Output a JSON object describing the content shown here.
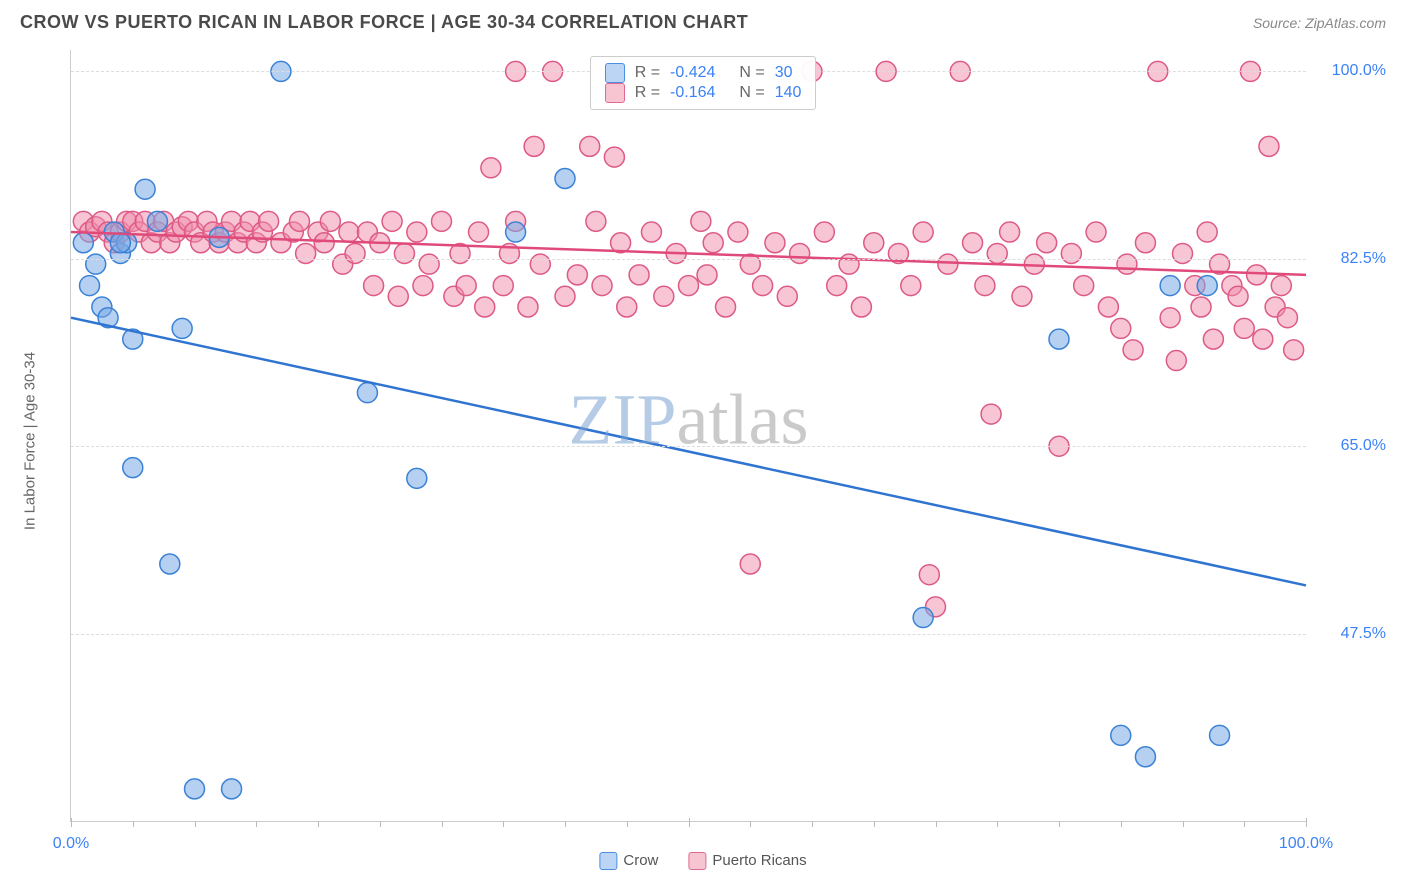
{
  "header": {
    "title": "CROW VS PUERTO RICAN IN LABOR FORCE | AGE 30-34 CORRELATION CHART",
    "source_prefix": "Source: ",
    "source": "ZipAtlas.com"
  },
  "ylabel": "In Labor Force | Age 30-34",
  "watermark": {
    "zip": "ZIP",
    "atlas": "atlas"
  },
  "chart": {
    "type": "scatter",
    "xlim": [
      0,
      100
    ],
    "ylim": [
      30,
      102
    ],
    "background": "#ffffff",
    "grid_color": "#dddddd",
    "yticks": [
      {
        "v": 47.5,
        "label": "47.5%"
      },
      {
        "v": 65.0,
        "label": "65.0%"
      },
      {
        "v": 82.5,
        "label": "82.5%"
      },
      {
        "v": 100.0,
        "label": "100.0%"
      }
    ],
    "xticks_major": [
      0,
      50,
      100
    ],
    "xticks_minor": [
      5,
      10,
      15,
      20,
      25,
      30,
      35,
      40,
      45,
      55,
      60,
      65,
      70,
      75,
      80,
      85,
      90,
      95
    ],
    "xlabels": [
      {
        "v": 0,
        "label": "0.0%"
      },
      {
        "v": 100,
        "label": "100.0%"
      }
    ],
    "legend": {
      "rows": [
        {
          "color_fill": "#bcd5f5",
          "color_stroke": "#4a8fe0",
          "r_label": "R =",
          "r": "-0.424",
          "n_label": "N =",
          "n": "30"
        },
        {
          "color_fill": "#f7c5d2",
          "color_stroke": "#e06a8f",
          "r_label": "R =",
          "r": "-0.164",
          "n_label": "N =",
          "n": "140"
        }
      ]
    },
    "bottom_legend": [
      {
        "label": "Crow",
        "fill": "#bcd5f5",
        "stroke": "#4a8fe0"
      },
      {
        "label": "Puerto Ricans",
        "fill": "#f7c5d2",
        "stroke": "#e06a8f"
      }
    ],
    "series": [
      {
        "name": "Crow",
        "color_fill": "rgba(120,170,230,0.55)",
        "color_stroke": "#3b82d6",
        "marker_r": 10,
        "trend": {
          "x1": 0,
          "y1": 77,
          "x2": 100,
          "y2": 52,
          "color": "#2f74d0",
          "width": 2.5
        },
        "points": [
          [
            1,
            84
          ],
          [
            2,
            82
          ],
          [
            3.5,
            85
          ],
          [
            4,
            83
          ],
          [
            1.5,
            80
          ],
          [
            2.5,
            78
          ],
          [
            3,
            77
          ],
          [
            5,
            75
          ],
          [
            6,
            89
          ],
          [
            7,
            86
          ],
          [
            4.5,
            84
          ],
          [
            17,
            100
          ],
          [
            12,
            84.5
          ],
          [
            9,
            76
          ],
          [
            5,
            63
          ],
          [
            8,
            54
          ],
          [
            24,
            70
          ],
          [
            28,
            62
          ],
          [
            36,
            85
          ],
          [
            40,
            90
          ],
          [
            69,
            49
          ],
          [
            80,
            75
          ],
          [
            89,
            80
          ],
          [
            92,
            80
          ],
          [
            85,
            38
          ],
          [
            87,
            36
          ],
          [
            93,
            38
          ],
          [
            10,
            33
          ],
          [
            13,
            33
          ],
          [
            4,
            84
          ]
        ]
      },
      {
        "name": "Puerto Ricans",
        "color_fill": "rgba(240,140,170,0.5)",
        "color_stroke": "#dd5a86",
        "marker_r": 10,
        "trend": {
          "x1": 0,
          "y1": 85,
          "x2": 100,
          "y2": 81,
          "color": "#e04a7a",
          "width": 2.5
        },
        "points": [
          [
            1,
            86
          ],
          [
            1.5,
            85
          ],
          [
            2,
            85.5
          ],
          [
            2.5,
            86
          ],
          [
            3,
            85
          ],
          [
            3.5,
            84
          ],
          [
            4,
            85
          ],
          [
            4.5,
            86
          ],
          [
            5,
            86
          ],
          [
            5.5,
            85
          ],
          [
            6,
            86
          ],
          [
            6.5,
            84
          ],
          [
            7,
            85
          ],
          [
            7.5,
            86
          ],
          [
            8,
            84
          ],
          [
            8.5,
            85
          ],
          [
            9,
            85.5
          ],
          [
            9.5,
            86
          ],
          [
            10,
            85
          ],
          [
            10.5,
            84
          ],
          [
            11,
            86
          ],
          [
            11.5,
            85
          ],
          [
            12,
            84
          ],
          [
            12.5,
            85
          ],
          [
            13,
            86
          ],
          [
            13.5,
            84
          ],
          [
            14,
            85
          ],
          [
            14.5,
            86
          ],
          [
            15,
            84
          ],
          [
            15.5,
            85
          ],
          [
            16,
            86
          ],
          [
            17,
            84
          ],
          [
            18,
            85
          ],
          [
            18.5,
            86
          ],
          [
            19,
            83
          ],
          [
            20,
            85
          ],
          [
            20.5,
            84
          ],
          [
            21,
            86
          ],
          [
            22,
            82
          ],
          [
            22.5,
            85
          ],
          [
            23,
            83
          ],
          [
            24,
            85
          ],
          [
            24.5,
            80
          ],
          [
            25,
            84
          ],
          [
            26,
            86
          ],
          [
            26.5,
            79
          ],
          [
            27,
            83
          ],
          [
            28,
            85
          ],
          [
            28.5,
            80
          ],
          [
            29,
            82
          ],
          [
            30,
            86
          ],
          [
            31,
            79
          ],
          [
            31.5,
            83
          ],
          [
            32,
            80
          ],
          [
            33,
            85
          ],
          [
            33.5,
            78
          ],
          [
            34,
            91
          ],
          [
            35,
            80
          ],
          [
            35.5,
            83
          ],
          [
            36,
            86
          ],
          [
            37,
            78
          ],
          [
            37.5,
            93
          ],
          [
            38,
            82
          ],
          [
            39,
            100
          ],
          [
            40,
            79
          ],
          [
            36,
            100
          ],
          [
            41,
            81
          ],
          [
            42,
            93
          ],
          [
            42.5,
            86
          ],
          [
            43,
            80
          ],
          [
            44,
            92
          ],
          [
            44.5,
            84
          ],
          [
            45,
            78
          ],
          [
            46,
            81
          ],
          [
            47,
            85
          ],
          [
            48,
            79
          ],
          [
            49,
            83
          ],
          [
            50,
            80
          ],
          [
            51,
            86
          ],
          [
            51.5,
            81
          ],
          [
            52,
            84
          ],
          [
            53,
            78
          ],
          [
            54,
            85
          ],
          [
            55,
            82
          ],
          [
            56,
            80
          ],
          [
            57,
            84
          ],
          [
            58,
            79
          ],
          [
            59,
            83
          ],
          [
            60,
            100
          ],
          [
            61,
            85
          ],
          [
            62,
            80
          ],
          [
            63,
            82
          ],
          [
            64,
            78
          ],
          [
            65,
            84
          ],
          [
            66,
            100
          ],
          [
            67,
            83
          ],
          [
            68,
            80
          ],
          [
            69,
            85
          ],
          [
            69.5,
            53
          ],
          [
            70,
            50
          ],
          [
            71,
            82
          ],
          [
            72,
            100
          ],
          [
            73,
            84
          ],
          [
            74,
            80
          ],
          [
            74.5,
            68
          ],
          [
            75,
            83
          ],
          [
            76,
            85
          ],
          [
            77,
            79
          ],
          [
            78,
            82
          ],
          [
            79,
            84
          ],
          [
            80,
            65
          ],
          [
            81,
            83
          ],
          [
            82,
            80
          ],
          [
            83,
            85
          ],
          [
            84,
            78
          ],
          [
            85,
            76
          ],
          [
            85.5,
            82
          ],
          [
            86,
            74
          ],
          [
            87,
            84
          ],
          [
            88,
            100
          ],
          [
            89,
            77
          ],
          [
            89.5,
            73
          ],
          [
            90,
            83
          ],
          [
            91,
            80
          ],
          [
            91.5,
            78
          ],
          [
            92,
            85
          ],
          [
            92.5,
            75
          ],
          [
            93,
            82
          ],
          [
            94,
            80
          ],
          [
            94.5,
            79
          ],
          [
            95,
            76
          ],
          [
            95.5,
            100
          ],
          [
            96,
            81
          ],
          [
            96.5,
            75
          ],
          [
            97,
            93
          ],
          [
            97.5,
            78
          ],
          [
            98,
            80
          ],
          [
            98.5,
            77
          ],
          [
            99,
            74
          ],
          [
            55,
            54
          ]
        ]
      }
    ]
  }
}
